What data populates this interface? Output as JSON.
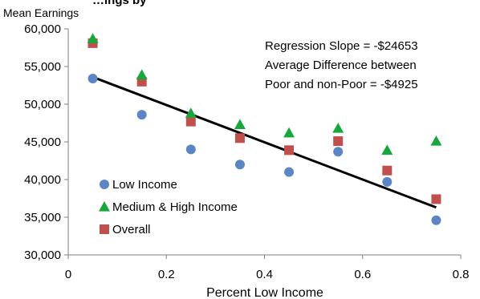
{
  "chart_data": {
    "type": "scatter",
    "title": "…ings by",
    "ylabel": "Mean Earnings",
    "xlabel": "Percent Low Income",
    "xlim": [
      0,
      0.8
    ],
    "ylim": [
      30000,
      60000
    ],
    "xticks": [
      {
        "value": 0,
        "label": "0"
      },
      {
        "value": 0.2,
        "label": "0.2"
      },
      {
        "value": 0.4,
        "label": "0.4"
      },
      {
        "value": 0.6,
        "label": "0.6"
      },
      {
        "value": 0.8,
        "label": "0.8"
      }
    ],
    "yticks": [
      {
        "value": 30000,
        "label": "30,000"
      },
      {
        "value": 35000,
        "label": "35,000"
      },
      {
        "value": 40000,
        "label": "40,000"
      },
      {
        "value": 45000,
        "label": "45,000"
      },
      {
        "value": 50000,
        "label": "50,000"
      },
      {
        "value": 55000,
        "label": "55,000"
      },
      {
        "value": 60000,
        "label": "60,000"
      }
    ],
    "grid": false,
    "legend_position": "bottom-left",
    "series": [
      {
        "name": "Low Income",
        "marker": "circle",
        "color": "#5B85C4",
        "points": [
          {
            "x": 0.05,
            "y": 53400
          },
          {
            "x": 0.15,
            "y": 48600
          },
          {
            "x": 0.25,
            "y": 44000
          },
          {
            "x": 0.35,
            "y": 42000
          },
          {
            "x": 0.45,
            "y": 41000
          },
          {
            "x": 0.55,
            "y": 43700
          },
          {
            "x": 0.65,
            "y": 39700
          },
          {
            "x": 0.75,
            "y": 34600
          }
        ]
      },
      {
        "name": "Medium & High Income",
        "marker": "triangle",
        "color": "#16A83A",
        "points": [
          {
            "x": 0.05,
            "y": 58700
          },
          {
            "x": 0.15,
            "y": 53900
          },
          {
            "x": 0.25,
            "y": 48800
          },
          {
            "x": 0.35,
            "y": 47300
          },
          {
            "x": 0.45,
            "y": 46200
          },
          {
            "x": 0.55,
            "y": 46800
          },
          {
            "x": 0.65,
            "y": 43900
          },
          {
            "x": 0.75,
            "y": 45100
          }
        ]
      },
      {
        "name": "Overall",
        "marker": "square",
        "color": "#C0504D",
        "points": [
          {
            "x": 0.05,
            "y": 58100
          },
          {
            "x": 0.15,
            "y": 53000
          },
          {
            "x": 0.25,
            "y": 47700
          },
          {
            "x": 0.35,
            "y": 45500
          },
          {
            "x": 0.45,
            "y": 43900
          },
          {
            "x": 0.55,
            "y": 45100
          },
          {
            "x": 0.65,
            "y": 41200
          },
          {
            "x": 0.75,
            "y": 37400
          }
        ]
      }
    ],
    "trendline": {
      "color": "#000000",
      "points": [
        {
          "x": 0.05,
          "y": 53600
        },
        {
          "x": 0.75,
          "y": 36300
        }
      ]
    },
    "annotations": [
      "Regression Slope = -$24653",
      "Average Difference between",
      "Poor and non-Poor = -$4925"
    ],
    "axis_color": "#808080"
  }
}
